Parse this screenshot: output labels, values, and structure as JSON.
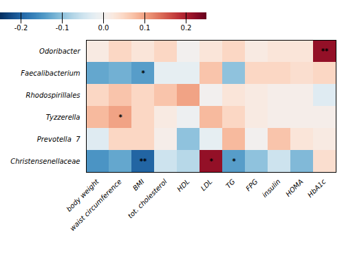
{
  "chart_data": {
    "type": "heatmap",
    "rows": [
      "Odoribacter",
      "Faecalibacterium",
      "Rhodospirillales",
      "Tyzzerella",
      "Prevotella  7",
      "Christensenellaceae"
    ],
    "columns": [
      "body weight",
      "waist circumference",
      "BMI",
      "tot. cholesterol",
      "HDL",
      "LDL",
      "TG",
      "FPG",
      "insulin",
      "HOMA",
      "HbA1c"
    ],
    "values": [
      [
        0.02,
        0.05,
        0.03,
        0.05,
        0.0,
        0.03,
        0.05,
        0.02,
        0.03,
        0.03,
        0.22
      ],
      [
        -0.13,
        -0.12,
        -0.14,
        -0.02,
        -0.02,
        0.07,
        -0.1,
        0.05,
        0.05,
        0.04,
        0.05
      ],
      [
        0.05,
        0.07,
        0.05,
        0.07,
        0.1,
        0.0,
        0.03,
        0.02,
        0.01,
        0.01,
        -0.03
      ],
      [
        0.08,
        0.1,
        0.05,
        0.02,
        -0.01,
        0.08,
        0.05,
        0.02,
        0.01,
        0.01,
        0.01
      ],
      [
        -0.03,
        0.05,
        0.05,
        0.01,
        -0.1,
        -0.02,
        0.08,
        0.0,
        0.07,
        0.03,
        0.02
      ],
      [
        -0.15,
        -0.13,
        -0.2,
        -0.05,
        -0.07,
        0.22,
        -0.14,
        -0.1,
        -0.05,
        -0.11,
        0.04
      ]
    ],
    "asterisks": [
      [
        null,
        null,
        null,
        null,
        null,
        null,
        null,
        null,
        null,
        null,
        "**"
      ],
      [
        null,
        null,
        "*",
        null,
        null,
        null,
        null,
        null,
        null,
        null,
        null
      ],
      [
        null,
        null,
        null,
        null,
        null,
        null,
        null,
        null,
        null,
        null,
        null
      ],
      [
        null,
        "*",
        null,
        null,
        null,
        null,
        null,
        null,
        null,
        null,
        null
      ],
      [
        null,
        null,
        null,
        null,
        null,
        null,
        null,
        null,
        null,
        null,
        null
      ],
      [
        null,
        null,
        "**",
        null,
        null,
        "*",
        "*",
        null,
        null,
        null,
        null
      ]
    ],
    "colorbar_range": [
      -0.25,
      0.25
    ],
    "colorbar_ticks": [
      0.2,
      0.1,
      {
        "value": 0,
        "label": "0.0"
      },
      -0.1,
      -0.2
    ]
  }
}
